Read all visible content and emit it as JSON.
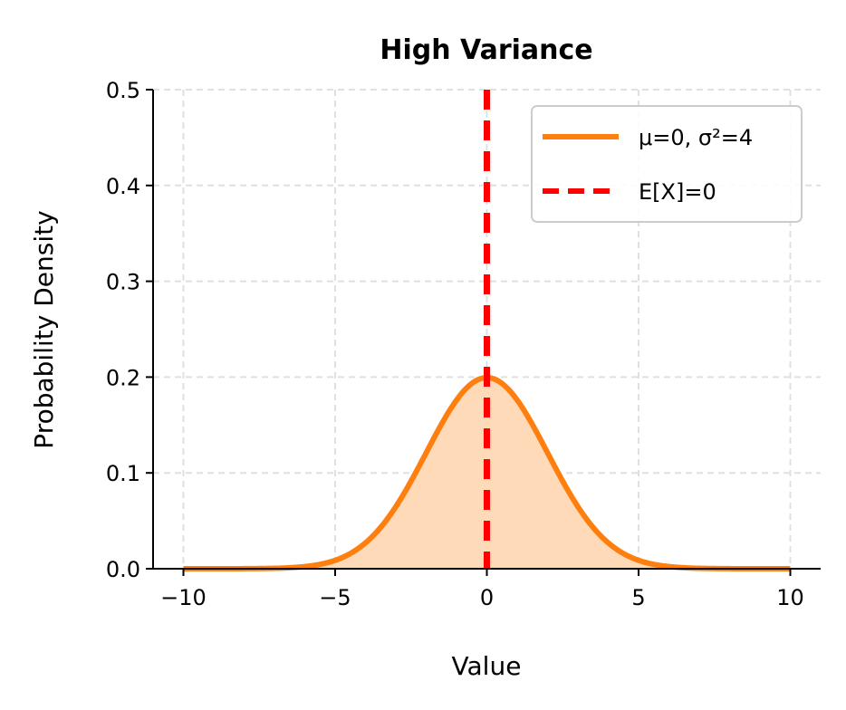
{
  "chart_data": {
    "type": "line",
    "title": "High Variance",
    "xlabel": "Value",
    "ylabel": "Probability Density",
    "xlim": [
      -11,
      11
    ],
    "ylim": [
      0,
      0.5
    ],
    "x_ticks": [
      -10,
      -5,
      0,
      5,
      10
    ],
    "x_tick_labels": [
      "−10",
      "−5",
      "0",
      "5",
      "10"
    ],
    "y_ticks": [
      0.0,
      0.1,
      0.2,
      0.3,
      0.4,
      0.5
    ],
    "y_tick_labels": [
      "0.0",
      "0.1",
      "0.2",
      "0.3",
      "0.4",
      "0.5"
    ],
    "grid": true,
    "legend_position": "top-right",
    "series": [
      {
        "name": "μ=0, σ²=4",
        "kind": "density-curve",
        "color": "#ff7f0e",
        "fill_color": "#ffdab9",
        "x": [
          -10,
          -8,
          -6,
          -5,
          -4,
          -3,
          -2,
          -1,
          0,
          1,
          2,
          3,
          4,
          5,
          6,
          8,
          10
        ],
        "y": [
          0.0,
          0.0001,
          0.0022,
          0.0088,
          0.027,
          0.0648,
          0.121,
          0.176,
          0.1995,
          0.176,
          0.121,
          0.0648,
          0.027,
          0.0088,
          0.0022,
          0.0001,
          0.0
        ]
      },
      {
        "name": "E[X]=0",
        "kind": "vertical-line",
        "color": "#ff0000",
        "style": "dashed",
        "x": 0
      }
    ]
  }
}
